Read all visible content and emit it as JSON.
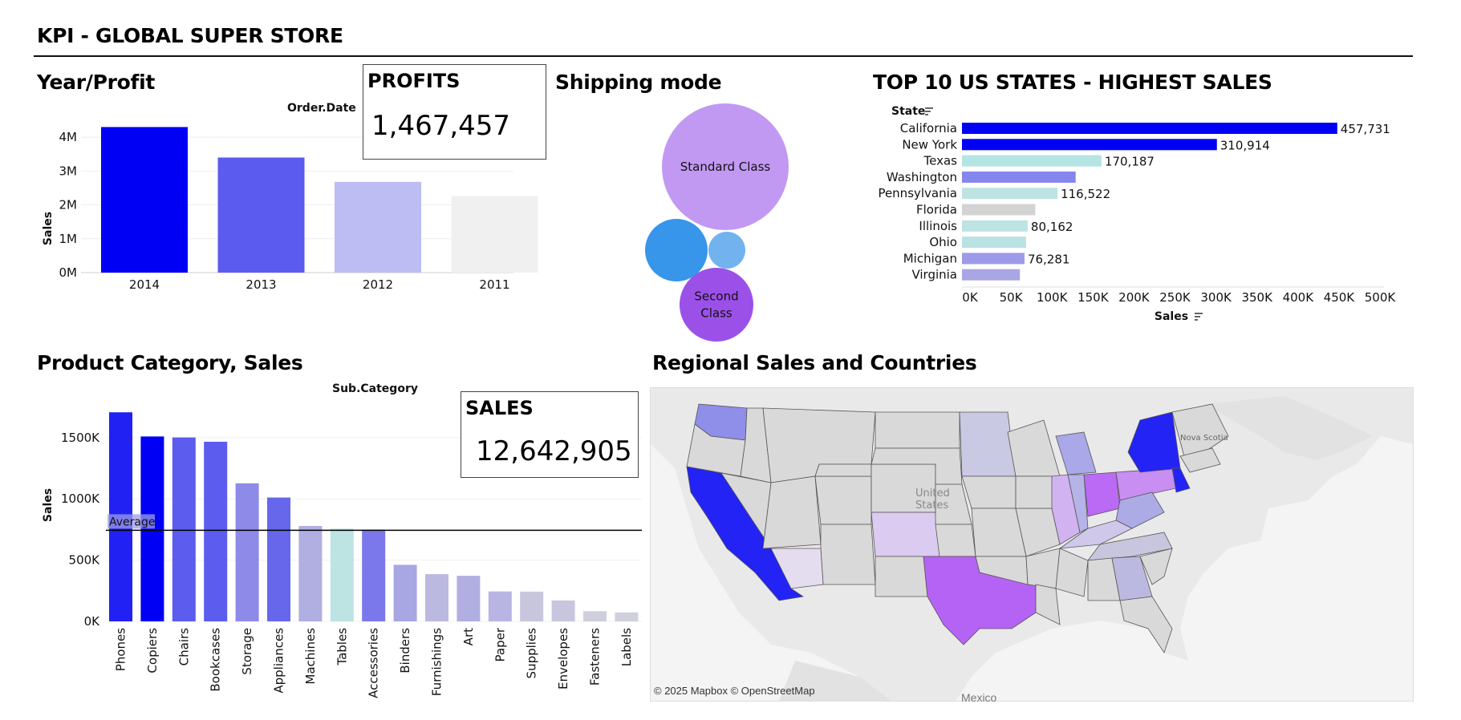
{
  "header": {
    "title": "KPI - GLOBAL SUPER STORE"
  },
  "year_profit": {
    "title": "Year/Profit",
    "column_header": "Order.Date",
    "ylabel": "Sales",
    "chart_data": {
      "type": "bar",
      "categories": [
        "2014",
        "2013",
        "2012",
        "2011"
      ],
      "values": [
        4300000,
        3400000,
        2680000,
        2260000
      ],
      "colors": [
        "#0000f5",
        "#5b5bf0",
        "#bdbcf3",
        "#f0f0f0"
      ],
      "yticks": [
        "0M",
        "1M",
        "2M",
        "3M",
        "4M"
      ],
      "ylim": [
        0,
        4500000
      ],
      "ylabel": "Sales"
    }
  },
  "profits": {
    "label": "PROFITS",
    "value": "1,467,457"
  },
  "shipping": {
    "title": "Shipping mode",
    "bubbles": [
      {
        "label": "Standard Class",
        "color": "#c299f2"
      },
      {
        "label": "Second Class",
        "color": "#9b51e8"
      },
      {
        "label": "",
        "color": "#3795ea"
      },
      {
        "label": "",
        "color": "#72b2ee"
      }
    ]
  },
  "top_states": {
    "title": "TOP 10 US STATES - HIGHEST SALES",
    "row_header": "State",
    "xlabel": "Sales",
    "chart_data": {
      "type": "bar",
      "orientation": "horizontal",
      "categories": [
        "California",
        "New York",
        "Texas",
        "Washington",
        "Pennsylvania",
        "Florida",
        "Illinois",
        "Ohio",
        "Michigan",
        "Virginia"
      ],
      "values": [
        457731,
        310914,
        170187,
        138641,
        116522,
        89474,
        80162,
        78258,
        76281,
        70637
      ],
      "labels": [
        "457,731",
        "310,914",
        "170,187",
        "",
        "116,522",
        "",
        "80,162",
        "",
        "76,281",
        ""
      ],
      "colors": [
        "#0000f5",
        "#0000f5",
        "#b5e4e4",
        "#8585ee",
        "#bde3e3",
        "#d3d3d3",
        "#bde3e3",
        "#b9e2e2",
        "#9d9aea",
        "#a9a6e4"
      ],
      "xticks": [
        "0K",
        "50K",
        "100K",
        "150K",
        "200K",
        "250K",
        "300K",
        "350K",
        "400K",
        "450K",
        "500K"
      ],
      "xlim": [
        0,
        500000
      ],
      "xlabel": "Sales"
    }
  },
  "product_category": {
    "title": "Product Category, Sales",
    "column_header": "Sub.Category",
    "ylabel": "Sales",
    "average_label": "Average",
    "chart_data": {
      "type": "bar",
      "categories": [
        "Phones",
        "Copiers",
        "Chairs",
        "Bookcases",
        "Storage",
        "Appliances",
        "Machines",
        "Tables",
        "Accessories",
        "Binders",
        "Furnishings",
        "Art",
        "Paper",
        "Supplies",
        "Envelopes",
        "Fasteners",
        "Labels"
      ],
      "values": [
        1706824,
        1509436,
        1501682,
        1466572,
        1127086,
        1011064,
        779060,
        757042,
        749237,
        461912,
        385578,
        372092,
        244292,
        243075,
        170904,
        83242,
        73404
      ],
      "colors": [
        "#2121f3",
        "#0000f5",
        "#5c5cef",
        "#5c5cef",
        "#8d8ae8",
        "#6767ec",
        "#b1aee2",
        "#bde3e3",
        "#7a78ea",
        "#a9a6e4",
        "#bcb9e0",
        "#b1aee2",
        "#b8b5e3",
        "#c7c6dc",
        "#c7c6de",
        "#cfcfdc",
        "#d0d0dc"
      ],
      "average": 743700,
      "yticks": [
        "0K",
        "500K",
        "1000K",
        "1500K"
      ],
      "ylim": [
        0,
        1800000
      ],
      "ylabel": "Sales"
    }
  },
  "sales": {
    "label": "SALES",
    "value": "12,642,905"
  },
  "map": {
    "title": "Regional Sales and Countries",
    "credit": "© 2025 Mapbox © OpenStreetMap",
    "labels": {
      "nova_scotia": "Nova Scotia",
      "mexico": "Mexico",
      "united_states": "United States"
    },
    "colors": {
      "highlight": "#2323f5",
      "purple": "#a855f7",
      "state_default": "#d9d9d9",
      "land": "#e9e9e9"
    }
  }
}
